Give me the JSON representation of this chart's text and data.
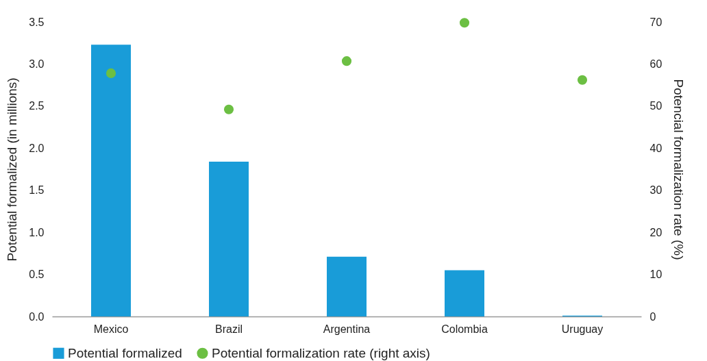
{
  "chart_data": {
    "type": "bar",
    "categories": [
      "Mexico",
      "Brazil",
      "Argentina",
      "Colombia",
      "Uruguay"
    ],
    "series": [
      {
        "name": "Potential formalized",
        "color": "#199cd8",
        "values": [
          3.23,
          1.84,
          0.71,
          0.55,
          0.01
        ]
      },
      {
        "name": "Potential formalization rate (right axis)",
        "type": "scatter",
        "axis": "y2",
        "color": "#6cbf43",
        "values": [
          57.8,
          49.2,
          60.7,
          69.8,
          56.2
        ]
      }
    ],
    "ylabel": "Potential formalized (in millions)",
    "y2label": "Potencial formalization rate (%)",
    "ylim": [
      0,
      3.5
    ],
    "yticks": [
      {
        "value": 0,
        "label": "0.0"
      },
      0.5,
      {
        "value": 1,
        "label": "1.0"
      },
      1.5,
      {
        "value": 2,
        "label": "2.0"
      },
      2.5,
      {
        "value": 3,
        "label": "3.0"
      },
      3.5
    ],
    "y2lim": [
      0,
      70
    ],
    "y2ticks": [
      0,
      10,
      20,
      30,
      40,
      50,
      60,
      70
    ],
    "legend": "bottom",
    "grid": false,
    "marker": "circle"
  }
}
